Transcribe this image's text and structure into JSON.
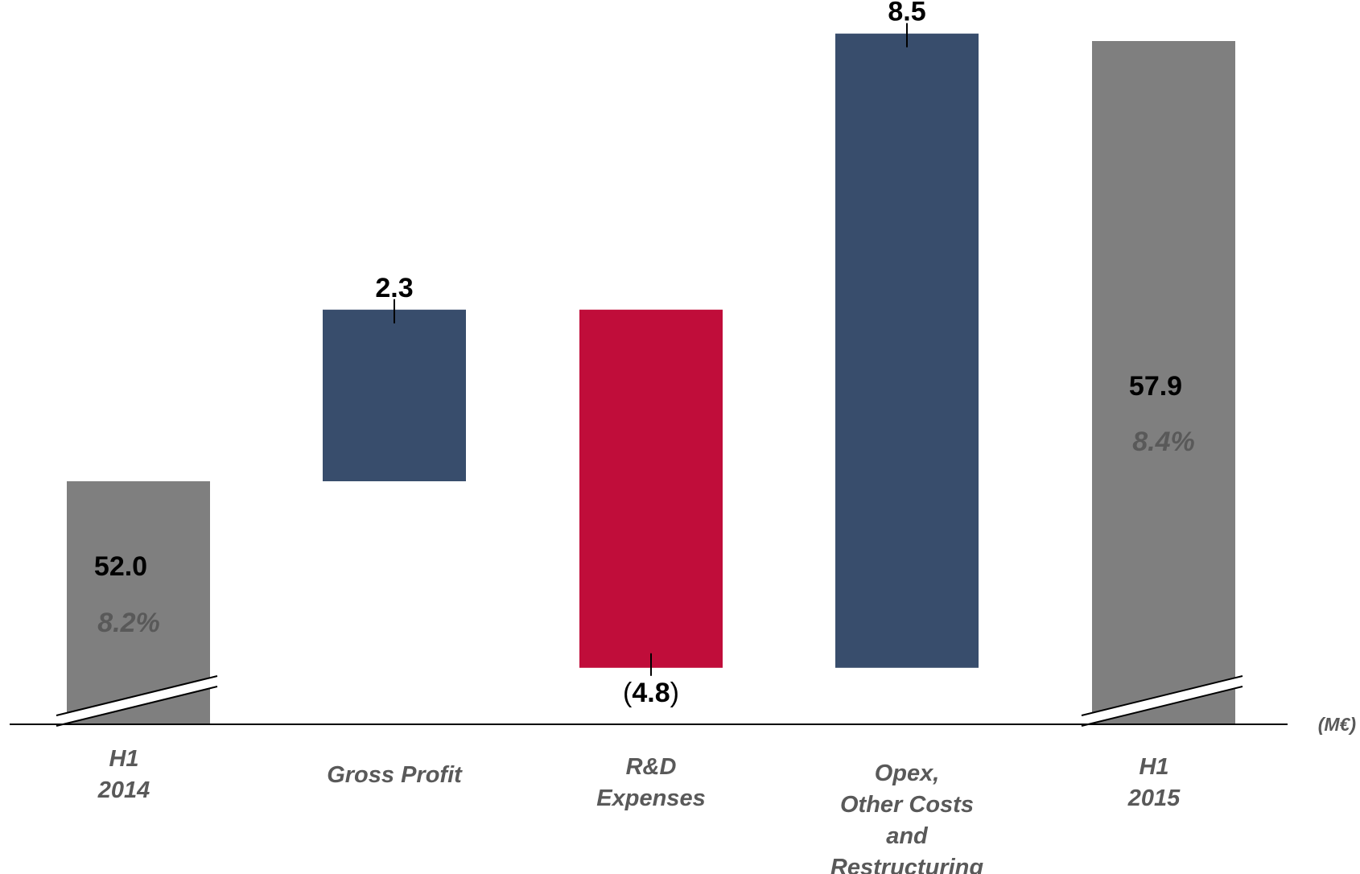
{
  "chart_data": {
    "type": "bar",
    "variant": "waterfall",
    "unit_label": "(M€)",
    "categories": [
      [
        "H1",
        "2014"
      ],
      [
        "Gross Profit"
      ],
      [
        "R&D",
        "Expenses"
      ],
      [
        "Opex,",
        "Other Costs",
        "and",
        "Restructuring"
      ],
      [
        "H1",
        "2015"
      ]
    ],
    "bars": [
      {
        "kind": "total",
        "value": 52.0,
        "label": "52.0",
        "pct": "8.2%",
        "color": "#7f7f7f"
      },
      {
        "kind": "delta",
        "value": 2.3,
        "label": "2.3",
        "color": "#384d6c"
      },
      {
        "kind": "delta",
        "value": -4.8,
        "label_prefix": "(",
        "label": "4.8",
        "label_suffix": ")",
        "color": "#c00d3a"
      },
      {
        "kind": "delta",
        "value": 8.5,
        "label": "8.5",
        "color": "#384d6c"
      },
      {
        "kind": "total",
        "value": 57.9,
        "label": "57.9",
        "pct": "8.4%",
        "color": "#7f7f7f"
      }
    ],
    "axis_break": true,
    "grid": false,
    "legend": "none"
  }
}
